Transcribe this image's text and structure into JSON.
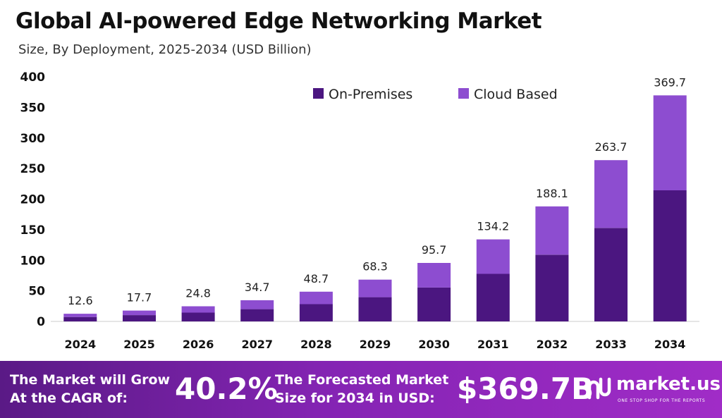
{
  "chart_data": {
    "type": "bar",
    "stacked": true,
    "title": "Global AI-powered Edge Networking Market",
    "subtitle": "Size, By Deployment, 2025-2034 (USD Billion)",
    "categories": [
      "2024",
      "2025",
      "2026",
      "2027",
      "2028",
      "2029",
      "2030",
      "2031",
      "2032",
      "2033",
      "2034"
    ],
    "series": [
      {
        "name": "On-Premises",
        "color": "#4b1680",
        "values": [
          7.3,
          10.3,
          14.4,
          20.1,
          28.3,
          39.6,
          55.5,
          77.8,
          109.1,
          152.9,
          214.4
        ]
      },
      {
        "name": "Cloud Based",
        "color": "#8d4dd0",
        "values": [
          5.3,
          7.4,
          10.4,
          14.6,
          20.4,
          28.7,
          40.2,
          56.4,
          79.0,
          110.8,
          155.3
        ]
      }
    ],
    "totals": [
      "12.6",
      "17.7",
      "24.8",
      "34.7",
      "48.7",
      "68.3",
      "95.7",
      "134.2",
      "188.1",
      "263.7",
      "369.7"
    ],
    "totals_values": [
      12.6,
      17.7,
      24.8,
      34.7,
      48.7,
      68.3,
      95.7,
      134.2,
      188.1,
      263.7,
      369.7
    ],
    "ylim": [
      0,
      400
    ],
    "yticks": [
      "0",
      "50",
      "100",
      "150",
      "200",
      "250",
      "300",
      "350",
      "400"
    ],
    "ytick_values": [
      0,
      50,
      100,
      150,
      200,
      250,
      300,
      350,
      400
    ],
    "grid": false,
    "legend": "top-center"
  },
  "banner": {
    "cagr_line1": "The Market will Grow",
    "cagr_line2": "At the CAGR of:",
    "cagr_value": "40.2%",
    "forecast_line1": "The Forecasted Market",
    "forecast_line2": "Size for 2034 in USD:",
    "forecast_value": "$369.7B",
    "logo_name": "market.us",
    "logo_tagline": "ONE STOP SHOP FOR THE REPORTS",
    "logo_icon": "market-us-logo-icon"
  }
}
